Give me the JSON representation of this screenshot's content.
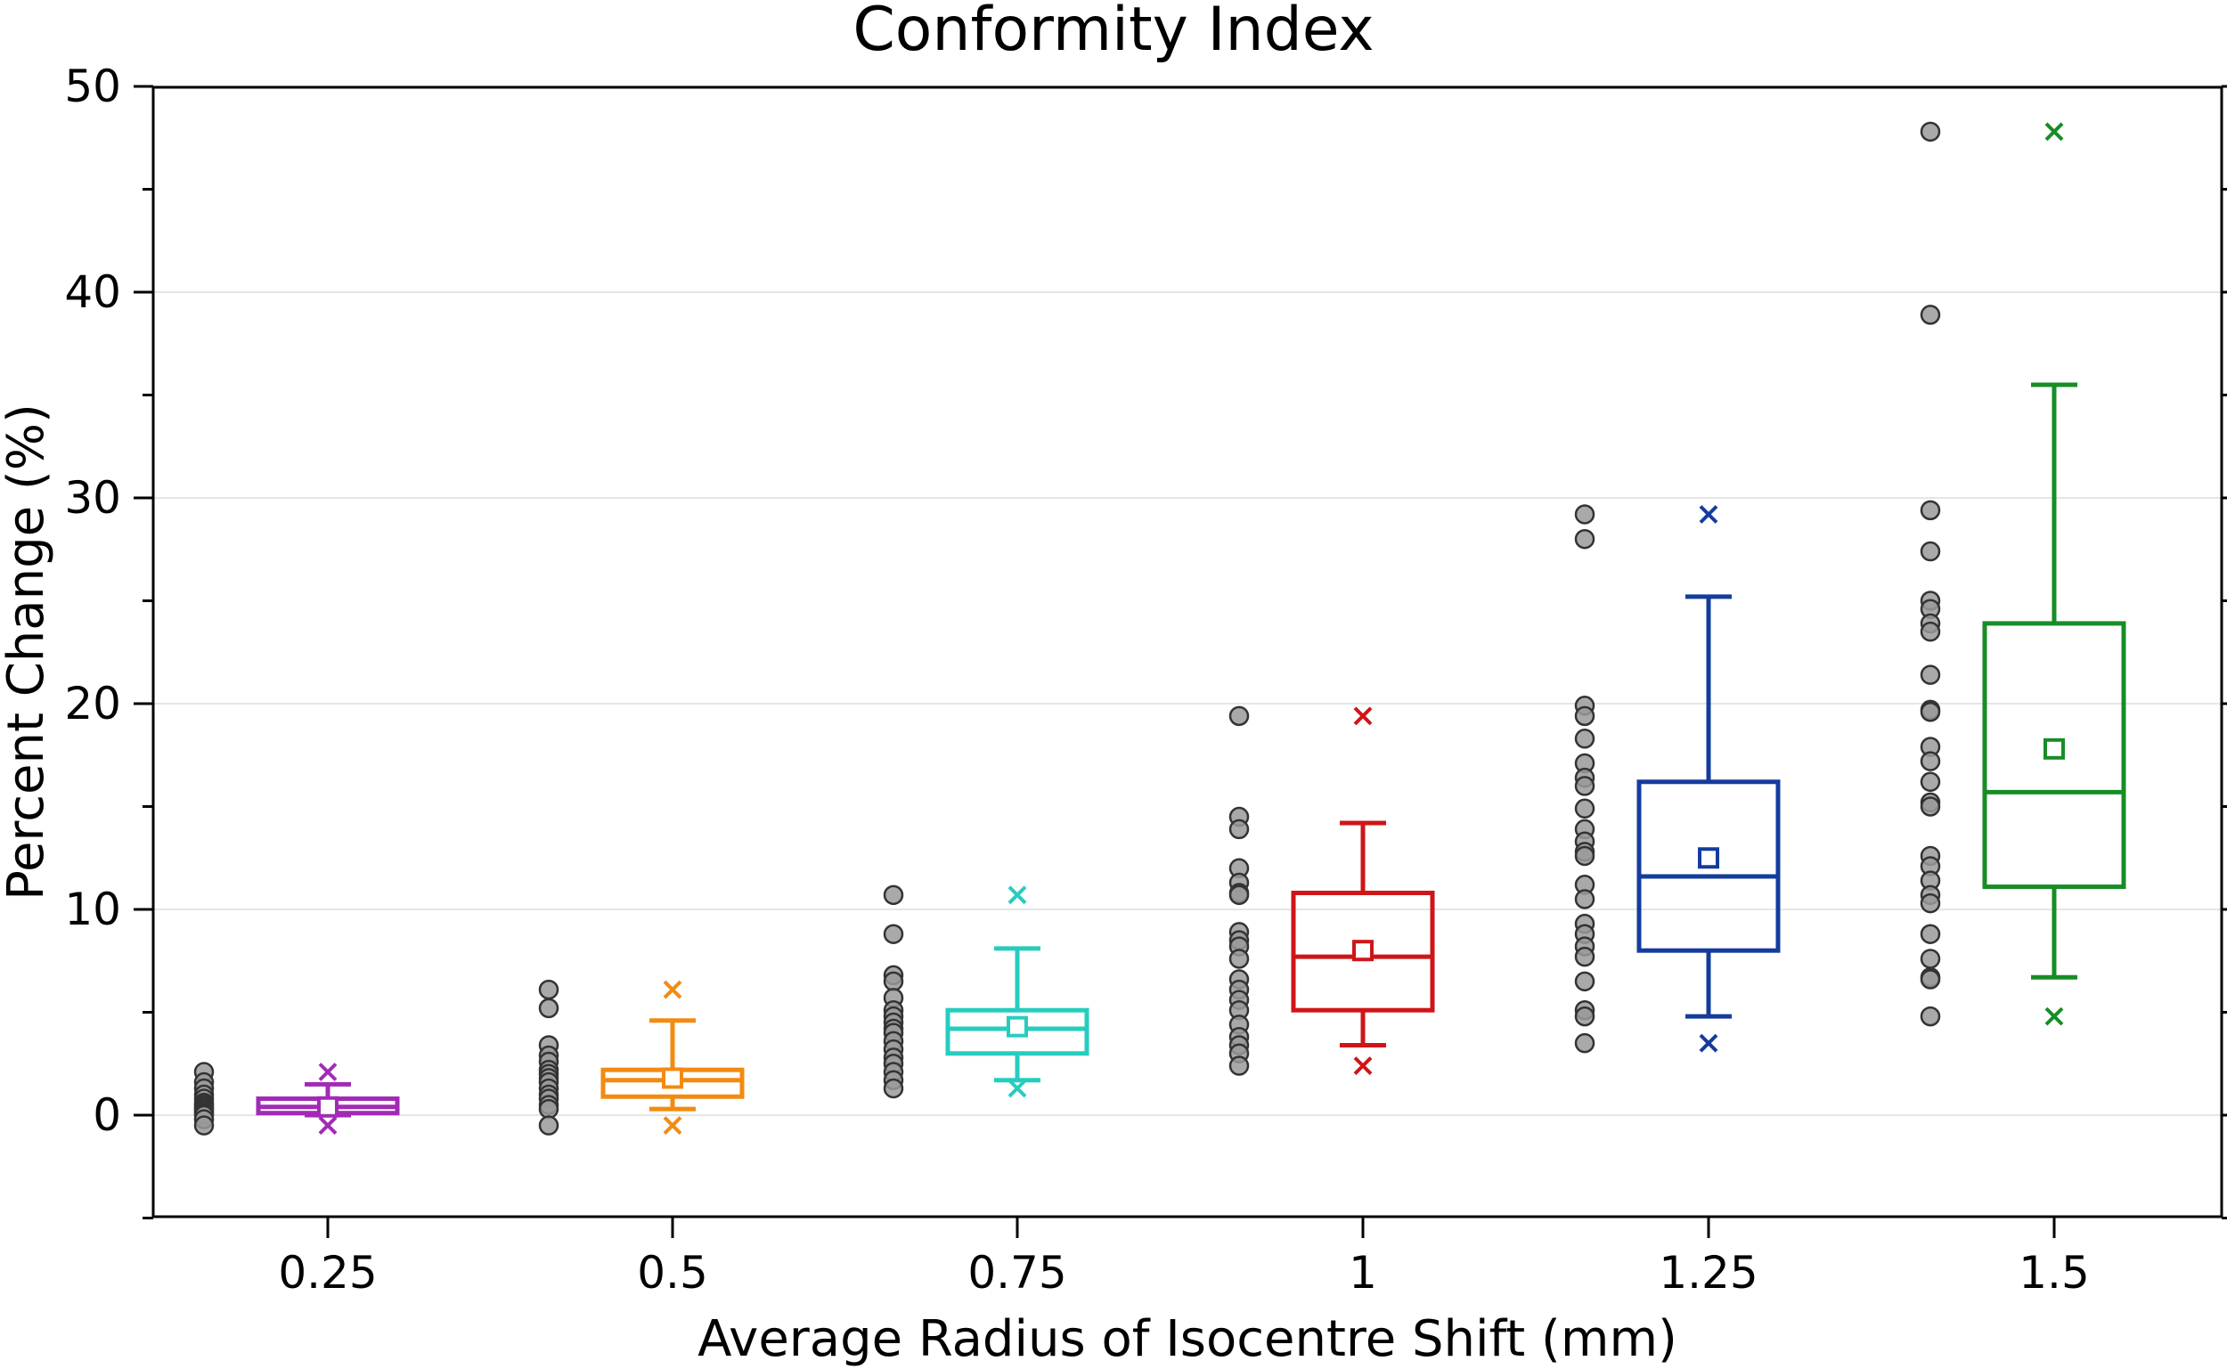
{
  "chart_data": {
    "type": "box",
    "title": "Conformity Index",
    "xlabel": "Average Radius of Isocentre Shift (mm)",
    "ylabel": "Percent Change (%)",
    "ylim": [
      -5,
      50
    ],
    "yticks": [
      0,
      10,
      20,
      30,
      40,
      50
    ],
    "grid": true,
    "categories": [
      "0.25",
      "0.5",
      "0.75",
      "1",
      "1.25",
      "1.5"
    ],
    "series": [
      {
        "name": "0.25",
        "color": "#a12bb5",
        "q1": 0.1,
        "median": 0.4,
        "q3": 0.8,
        "mean": 0.4,
        "whisker_low": 0.0,
        "whisker_high": 1.5,
        "min": -0.5,
        "max": 2.1,
        "points": [
          2.1,
          1.6,
          1.3,
          1.0,
          0.8,
          0.6,
          0.5,
          0.4,
          0.3,
          0.2,
          0.1,
          0.0,
          -0.2,
          -0.5
        ]
      },
      {
        "name": "0.5",
        "color": "#f28b12",
        "q1": 0.9,
        "median": 1.7,
        "q3": 2.2,
        "mean": 1.8,
        "whisker_low": 0.3,
        "whisker_high": 4.6,
        "min": -0.5,
        "max": 6.1,
        "points": [
          6.1,
          5.2,
          3.4,
          2.9,
          2.6,
          2.2,
          2.0,
          1.8,
          1.6,
          1.3,
          1.0,
          0.8,
          0.5,
          0.3,
          -0.5
        ]
      },
      {
        "name": "0.75",
        "color": "#26cdbe",
        "q1": 3.0,
        "median": 4.2,
        "q3": 5.1,
        "mean": 4.3,
        "whisker_low": 1.7,
        "whisker_high": 8.1,
        "min": 1.3,
        "max": 10.7,
        "points": [
          10.7,
          8.8,
          6.8,
          6.5,
          5.7,
          5.1,
          4.8,
          4.5,
          4.2,
          4.0,
          3.6,
          3.2,
          2.8,
          2.5,
          2.1,
          1.7,
          1.3
        ]
      },
      {
        "name": "1",
        "color": "#cf1518",
        "q1": 5.1,
        "median": 7.7,
        "q3": 10.8,
        "mean": 8.0,
        "whisker_low": 3.4,
        "whisker_high": 14.2,
        "min": 2.4,
        "max": 19.4,
        "points": [
          19.4,
          14.5,
          13.9,
          12.0,
          11.3,
          10.8,
          10.7,
          8.9,
          8.5,
          8.2,
          7.6,
          6.6,
          6.1,
          5.6,
          5.1,
          4.4,
          3.8,
          3.4,
          3.0,
          2.4
        ]
      },
      {
        "name": "1.25",
        "color": "#133c9c",
        "q1": 8.0,
        "median": 11.6,
        "q3": 16.2,
        "mean": 12.5,
        "whisker_low": 4.8,
        "whisker_high": 25.2,
        "min": 3.5,
        "max": 29.2,
        "points": [
          29.2,
          28.0,
          19.9,
          19.4,
          18.3,
          17.1,
          16.4,
          16.0,
          14.9,
          13.9,
          13.3,
          12.8,
          12.6,
          11.2,
          10.5,
          9.3,
          8.8,
          8.2,
          7.7,
          6.5,
          5.1,
          4.8,
          3.5
        ]
      },
      {
        "name": "1.5",
        "color": "#178d26",
        "q1": 11.1,
        "median": 15.7,
        "q3": 23.9,
        "mean": 17.8,
        "whisker_low": 6.7,
        "whisker_high": 35.5,
        "min": 4.8,
        "max": 47.8,
        "points": [
          47.8,
          38.9,
          29.4,
          27.4,
          25.0,
          24.6,
          23.9,
          23.5,
          21.4,
          19.7,
          19.6,
          17.9,
          17.2,
          16.2,
          15.2,
          15.0,
          12.6,
          12.1,
          11.4,
          10.7,
          10.3,
          8.8,
          7.6,
          6.7,
          6.6,
          4.8
        ]
      }
    ]
  }
}
